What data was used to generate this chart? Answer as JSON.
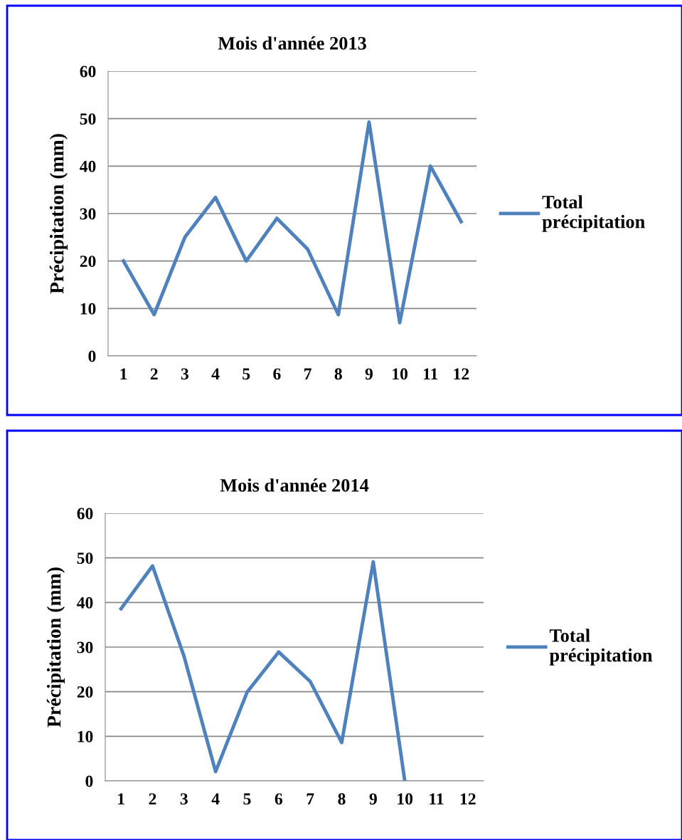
{
  "chart_data": [
    {
      "type": "line",
      "title": "Mois d'année 2013",
      "ylabel": "Précipitation (mm)",
      "categories": [
        "1",
        "2",
        "3",
        "4",
        "5",
        "6",
        "7",
        "8",
        "9",
        "10",
        "11",
        "12"
      ],
      "series": [
        {
          "name": "Total précipitation",
          "color": "#4f81bd",
          "values": [
            20,
            8.7,
            25,
            33.4,
            20,
            29,
            22.5,
            8.7,
            49.3,
            7,
            40,
            28.3
          ]
        }
      ],
      "ylim": [
        0,
        60
      ],
      "yticks": [
        0,
        10,
        20,
        30,
        40,
        50,
        60
      ],
      "grid": "y",
      "legend": "right",
      "marker": "none",
      "line_style": "solid"
    },
    {
      "type": "line",
      "title": "Mois d'année 2014",
      "ylabel": "Précipitation (mm)",
      "categories": [
        "1",
        "2",
        "3",
        "4",
        "5",
        "6",
        "7",
        "8",
        "9",
        "10",
        "11",
        "12"
      ],
      "series": [
        {
          "name": "Total précipitation",
          "color": "#4f81bd",
          "values": [
            38.6,
            48.2,
            27.9,
            2.1,
            19.9,
            28.9,
            22.3,
            8.6,
            49.1,
            0,
            null,
            null
          ]
        }
      ],
      "ylim": [
        0,
        60
      ],
      "yticks": [
        0,
        10,
        20,
        30,
        40,
        50,
        60
      ],
      "grid": "y",
      "legend": "right",
      "marker": "none",
      "line_style": "solid"
    }
  ]
}
